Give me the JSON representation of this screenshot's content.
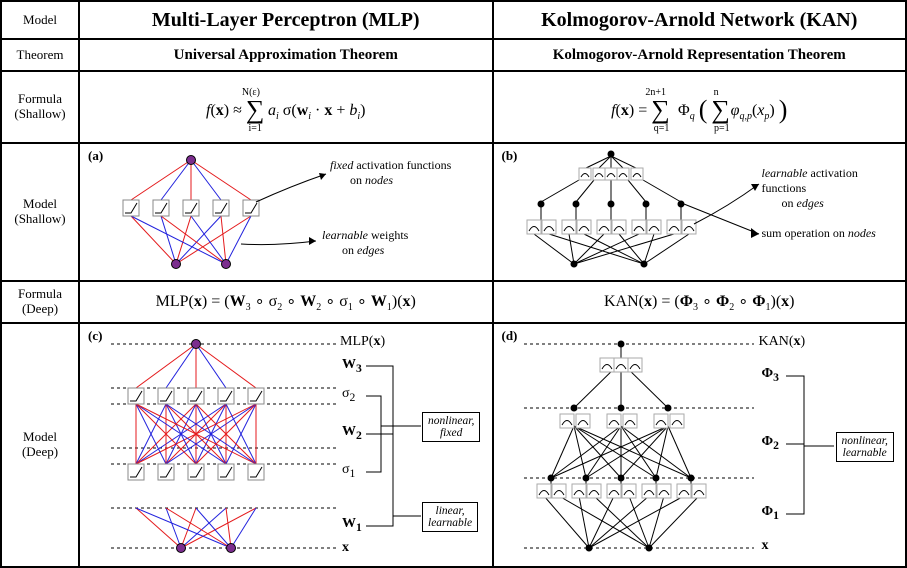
{
  "rows": {
    "model": "Model",
    "theorem": "Theorem",
    "formula_shallow_1": "Formula",
    "formula_shallow_2": "(Shallow)",
    "model_shallow_1": "Model",
    "model_shallow_2": "(Shallow)",
    "formula_deep_1": "Formula",
    "formula_deep_2": "(Deep)",
    "model_deep_1": "Model",
    "model_deep_2": "(Deep)"
  },
  "mlp": {
    "title": "Multi-Layer Perceptron (MLP)",
    "theorem": "Universal Approximation Theorem",
    "formula_shallow_html": "<i>f</i>(<b>x</b>) ≈ <span class='big'>∑</span><sub style='position:relative;left:-16px;top:12px'>i=1</sub><sup style='position:relative;left:-36px;top:-14px'>N(ε)</sup><span style='margin-left:-28px'></span><i>a<sub>i</sub></i> σ(<b>w</b><sub><i>i</i></sub> · <b>x</b> + <i>b<sub>i</sub></i>)",
    "formula_deep_html": "MLP(<b>x</b>) = (<b>W</b><sub>3</sub> ∘ σ<sub>2</sub> ∘ <b>W</b><sub>2</sub> ∘ σ<sub>1</sub> ∘ <b>W</b><sub>1</sub>)(<b>x</b>)",
    "panel_a": "(a)",
    "panel_c": "(c)",
    "anno_fixed_1": "fixed",
    "anno_fixed_2": " activation functions",
    "anno_fixed_3": "on ",
    "anno_fixed_4": "nodes",
    "anno_learn_1": "learnable",
    "anno_learn_2": " weights",
    "anno_learn_3": "on ",
    "anno_learn_4": "edges",
    "deep": {
      "output": "MLP(x)",
      "input": "x",
      "W3": "W",
      "W3s": "3",
      "s2": "σ",
      "s2s": "2",
      "W2": "W",
      "W2s": "2",
      "s1": "σ",
      "s1s": "1",
      "W1": "W",
      "W1s": "1",
      "box1a": "nonlinear,",
      "box1b": "fixed",
      "box2a": "linear,",
      "box2b": "learnable"
    },
    "colors": {
      "red": "#e41a1c",
      "blue": "#2222dd",
      "node_fill": "#7b2d8e",
      "node_stroke": "#000"
    }
  },
  "kan": {
    "title": "Kolmogorov-Arnold Network (KAN)",
    "theorem": "Kolmogorov-Arnold Representation Theorem",
    "formula_shallow_html": "<i>f</i>(<b>x</b>) = <span class='big'>∑</span><sub style='position:relative;left:-16px;top:12px'>q=1</sub><sup style='position:relative;left:-40px;top:-14px'>2n+1</sup><span style='margin-left:-28px'></span>Φ<sub><i>q</i></sub> <span class='big'>(</span> <span class='big'>∑</span><sub style='position:relative;left:-16px;top:12px'>p=1</sub><sup style='position:relative;left:-32px;top:-14px'>n</sup><span style='margin-left:-20px'></span><i>φ<sub>q,p</sub></i>(<i>x<sub>p</sub></i>) <span class='big'>)</span>",
    "formula_deep_html": "KAN(<b>x</b>) = (<b>Φ</b><sub>3</sub> ∘ <b>Φ</b><sub>2</sub> ∘ <b>Φ</b><sub>1</sub>)(<b>x</b>)",
    "panel_b": "(b)",
    "panel_d": "(d)",
    "anno_learn_1": "learnable",
    "anno_learn_2": " activation functions",
    "anno_learn_3": "on ",
    "anno_learn_4": "edges",
    "anno_sum": "sum operation on ",
    "anno_sum2": "nodes",
    "deep": {
      "output": "KAN(x)",
      "input": "x",
      "P3": "Φ",
      "P3s": "3",
      "P2": "Φ",
      "P2s": "2",
      "P1": "Φ",
      "P1s": "1",
      "box1a": "nonlinear,",
      "box1b": "learnable"
    },
    "colors": {
      "edge": "#000",
      "node": "#000"
    }
  }
}
